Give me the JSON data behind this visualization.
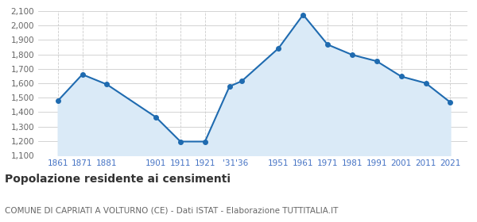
{
  "years": [
    1861,
    1871,
    1881,
    1901,
    1911,
    1921,
    1931,
    1936,
    1951,
    1961,
    1971,
    1981,
    1991,
    2001,
    2011,
    2021
  ],
  "population": [
    1478,
    1661,
    1592,
    1365,
    1196,
    1196,
    1578,
    1615,
    1843,
    2075,
    1868,
    1797,
    1753,
    1647,
    1601,
    1468
  ],
  "ylim": [
    1100,
    2100
  ],
  "yticks": [
    1100,
    1200,
    1300,
    1400,
    1500,
    1600,
    1700,
    1800,
    1900,
    2000,
    2100
  ],
  "line_color": "#1f6bb0",
  "fill_color": "#daeaf7",
  "marker_color": "#1f6bb0",
  "grid_color": "#cccccc",
  "background_color": "#ffffff",
  "title": "Popolazione residente ai censimenti",
  "subtitle": "COMUNE DI CAPRIATI A VOLTURNO (CE) - Dati ISTAT - Elaborazione TUTTITALIA.IT",
  "title_fontsize": 10,
  "subtitle_fontsize": 7.5,
  "tick_color": "#4472c4",
  "ytick_color": "#666666",
  "tick_fontsize": 7.5
}
